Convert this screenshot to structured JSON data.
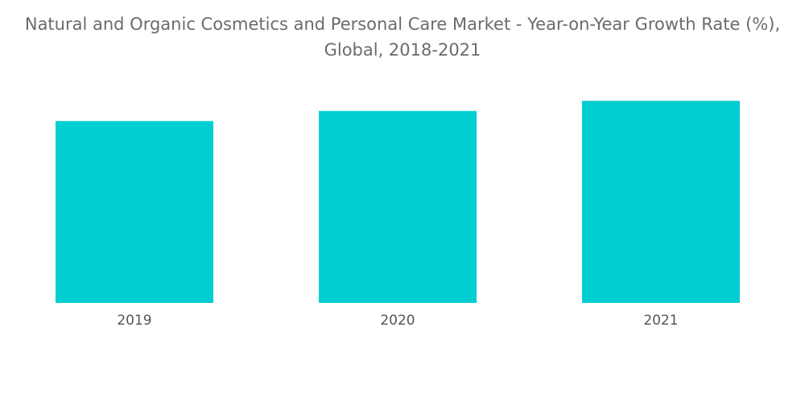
{
  "chart_data": {
    "type": "bar",
    "title_lines": [
      "Natural and Organic Cosmetics and Personal Care Market - Year-on-Year Growth Rate (%),",
      "Global, 2018-2021"
    ],
    "categories": [
      "2019",
      "2020",
      "2021"
    ],
    "values": [
      9.0,
      9.5,
      10.0
    ],
    "xlabel": "",
    "ylabel": "",
    "ylim": [
      0,
      12
    ],
    "grid": false,
    "legend": "none",
    "bar_color": "#00CED1"
  }
}
